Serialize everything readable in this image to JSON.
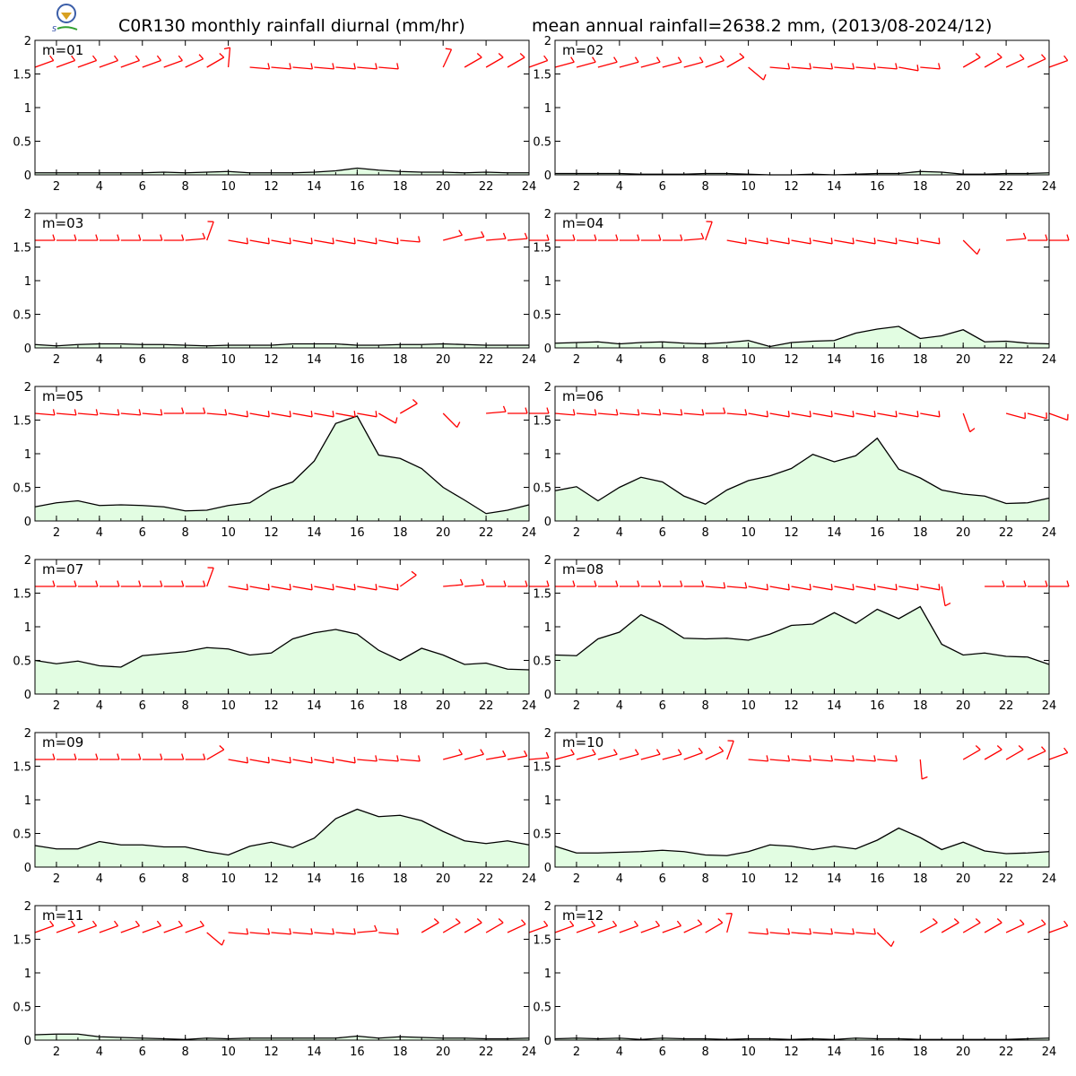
{
  "header": {
    "title_left": "C0R130 monthly rainfall diurnal (mm/hr)",
    "title_right": "mean annual rainfall=2638.2 mm, (2013/08-2024/12)"
  },
  "colors": {
    "fill": "#e2fde2",
    "line": "#000000",
    "wind": "#ff0000",
    "axis": "#000000"
  },
  "chart_data": [
    {
      "type": "area",
      "label": "m=01",
      "x": [
        1,
        2,
        3,
        4,
        5,
        6,
        7,
        8,
        9,
        10,
        11,
        12,
        13,
        14,
        15,
        16,
        17,
        18,
        19,
        20,
        21,
        22,
        23,
        24
      ],
      "ylim": [
        0,
        2
      ],
      "yticks": [
        0,
        0.5,
        1,
        1.5,
        2
      ],
      "xticks": [
        2,
        4,
        6,
        8,
        10,
        12,
        14,
        16,
        18,
        20,
        22,
        24
      ],
      "values": [
        0.03,
        0.03,
        0.03,
        0.03,
        0.03,
        0.03,
        0.04,
        0.03,
        0.04,
        0.05,
        0.03,
        0.03,
        0.03,
        0.04,
        0.06,
        0.1,
        0.07,
        0.05,
        0.04,
        0.04,
        0.03,
        0.04,
        0.03,
        0.03
      ],
      "wind_dir": [
        70,
        70,
        70,
        70,
        70,
        70,
        70,
        65,
        60,
        5,
        95,
        95,
        95,
        95,
        95,
        95,
        95,
        null,
        null,
        25,
        60,
        60,
        60,
        70
      ]
    },
    {
      "type": "area",
      "label": "m=02",
      "x": [
        1,
        2,
        3,
        4,
        5,
        6,
        7,
        8,
        9,
        10,
        11,
        12,
        13,
        14,
        15,
        16,
        17,
        18,
        19,
        20,
        21,
        22,
        23,
        24
      ],
      "ylim": [
        0,
        2
      ],
      "yticks": [
        0,
        0.5,
        1,
        1.5,
        2
      ],
      "xticks": [
        2,
        4,
        6,
        8,
        10,
        12,
        14,
        16,
        18,
        20,
        22,
        24
      ],
      "values": [
        0.02,
        0.02,
        0.02,
        0.02,
        0.01,
        0.01,
        0.01,
        0.02,
        0.02,
        0.01,
        0.0,
        0.0,
        0.01,
        0.0,
        0.01,
        0.02,
        0.02,
        0.05,
        0.04,
        0.01,
        0.01,
        0.02,
        0.02,
        0.03
      ],
      "wind_dir": [
        75,
        75,
        75,
        75,
        75,
        75,
        75,
        70,
        60,
        130,
        95,
        95,
        95,
        95,
        95,
        95,
        100,
        95,
        null,
        60,
        60,
        65,
        65,
        70
      ]
    },
    {
      "type": "area",
      "label": "m=03",
      "x": [
        1,
        2,
        3,
        4,
        5,
        6,
        7,
        8,
        9,
        10,
        11,
        12,
        13,
        14,
        15,
        16,
        17,
        18,
        19,
        20,
        21,
        22,
        23,
        24
      ],
      "ylim": [
        0,
        2
      ],
      "yticks": [
        0,
        0.5,
        1,
        1.5,
        2
      ],
      "xticks": [
        2,
        4,
        6,
        8,
        10,
        12,
        14,
        16,
        18,
        20,
        22,
        24
      ],
      "values": [
        0.05,
        0.03,
        0.05,
        0.06,
        0.06,
        0.05,
        0.05,
        0.04,
        0.03,
        0.04,
        0.04,
        0.04,
        0.06,
        0.06,
        0.06,
        0.04,
        0.04,
        0.05,
        0.05,
        0.06,
        0.05,
        0.04,
        0.04,
        0.04
      ],
      "wind_dir": [
        90,
        90,
        90,
        90,
        90,
        90,
        90,
        85,
        20,
        100,
        100,
        100,
        100,
        100,
        100,
        100,
        100,
        95,
        null,
        75,
        80,
        85,
        85,
        90
      ]
    },
    {
      "type": "area",
      "label": "m=04",
      "x": [
        1,
        2,
        3,
        4,
        5,
        6,
        7,
        8,
        9,
        10,
        11,
        12,
        13,
        14,
        15,
        16,
        17,
        18,
        19,
        20,
        21,
        22,
        23,
        24
      ],
      "ylim": [
        0,
        2
      ],
      "yticks": [
        0,
        0.5,
        1,
        1.5,
        2
      ],
      "xticks": [
        2,
        4,
        6,
        8,
        10,
        12,
        14,
        16,
        18,
        20,
        22,
        24
      ],
      "values": [
        0.07,
        0.08,
        0.09,
        0.06,
        0.08,
        0.09,
        0.07,
        0.06,
        0.08,
        0.11,
        0.02,
        0.08,
        0.1,
        0.11,
        0.22,
        0.28,
        0.32,
        0.14,
        0.18,
        0.27,
        0.09,
        0.1,
        0.07,
        0.06
      ],
      "wind_dir": [
        90,
        90,
        90,
        90,
        90,
        90,
        85,
        20,
        100,
        100,
        100,
        100,
        100,
        100,
        100,
        100,
        100,
        100,
        null,
        135,
        null,
        85,
        90,
        90
      ]
    },
    {
      "type": "area",
      "label": "m=05",
      "x": [
        1,
        2,
        3,
        4,
        5,
        6,
        7,
        8,
        9,
        10,
        11,
        12,
        13,
        14,
        15,
        16,
        17,
        18,
        19,
        20,
        21,
        22,
        23,
        24
      ],
      "ylim": [
        0,
        2
      ],
      "yticks": [
        0,
        0.5,
        1,
        1.5,
        2
      ],
      "xticks": [
        2,
        4,
        6,
        8,
        10,
        12,
        14,
        16,
        18,
        20,
        22,
        24
      ],
      "values": [
        0.21,
        0.27,
        0.3,
        0.23,
        0.24,
        0.23,
        0.21,
        0.15,
        0.16,
        0.23,
        0.27,
        0.47,
        0.58,
        0.89,
        1.45,
        1.56,
        0.98,
        0.93,
        0.78,
        0.5,
        0.31,
        0.11,
        0.16,
        0.24
      ],
      "wind_dir": [
        95,
        95,
        95,
        95,
        95,
        95,
        90,
        90,
        95,
        100,
        100,
        100,
        100,
        100,
        100,
        100,
        120,
        60,
        null,
        135,
        null,
        85,
        90,
        90
      ]
    },
    {
      "type": "area",
      "label": "m=06",
      "x": [
        1,
        2,
        3,
        4,
        5,
        6,
        7,
        8,
        9,
        10,
        11,
        12,
        13,
        14,
        15,
        16,
        17,
        18,
        19,
        20,
        21,
        22,
        23,
        24
      ],
      "ylim": [
        0,
        2
      ],
      "yticks": [
        0,
        0.5,
        1,
        1.5,
        2
      ],
      "xticks": [
        2,
        4,
        6,
        8,
        10,
        12,
        14,
        16,
        18,
        20,
        22,
        24
      ],
      "values": [
        0.45,
        0.51,
        0.3,
        0.5,
        0.65,
        0.58,
        0.37,
        0.25,
        0.46,
        0.6,
        0.67,
        0.78,
        0.99,
        0.88,
        0.97,
        1.23,
        0.77,
        0.64,
        0.46,
        0.4,
        0.37,
        0.26,
        0.27,
        0.34
      ],
      "wind_dir": [
        95,
        95,
        95,
        95,
        95,
        95,
        95,
        90,
        95,
        100,
        100,
        100,
        100,
        100,
        100,
        100,
        100,
        100,
        null,
        160,
        null,
        105,
        105,
        110
      ]
    },
    {
      "type": "area",
      "label": "m=07",
      "x": [
        1,
        2,
        3,
        4,
        5,
        6,
        7,
        8,
        9,
        10,
        11,
        12,
        13,
        14,
        15,
        16,
        17,
        18,
        19,
        20,
        21,
        22,
        23,
        24
      ],
      "ylim": [
        0,
        2
      ],
      "yticks": [
        0,
        0.5,
        1,
        1.5,
        2
      ],
      "xticks": [
        2,
        4,
        6,
        8,
        10,
        12,
        14,
        16,
        18,
        20,
        22,
        24
      ],
      "values": [
        0.5,
        0.45,
        0.49,
        0.42,
        0.4,
        0.57,
        0.6,
        0.63,
        0.69,
        0.67,
        0.58,
        0.61,
        0.82,
        0.91,
        0.96,
        0.89,
        0.65,
        0.5,
        0.68,
        0.58,
        0.44,
        0.46,
        0.37,
        0.36
      ],
      "wind_dir": [
        90,
        90,
        90,
        90,
        90,
        90,
        90,
        90,
        20,
        100,
        100,
        100,
        100,
        100,
        100,
        100,
        100,
        55,
        null,
        85,
        85,
        90,
        90,
        90
      ]
    },
    {
      "type": "area",
      "label": "m=08",
      "x": [
        1,
        2,
        3,
        4,
        5,
        6,
        7,
        8,
        9,
        10,
        11,
        12,
        13,
        14,
        15,
        16,
        17,
        18,
        19,
        20,
        21,
        22,
        23,
        24
      ],
      "ylim": [
        0,
        2
      ],
      "yticks": [
        0,
        0.5,
        1,
        1.5,
        2
      ],
      "xticks": [
        2,
        4,
        6,
        8,
        10,
        12,
        14,
        16,
        18,
        20,
        22,
        24
      ],
      "values": [
        0.58,
        0.57,
        0.82,
        0.92,
        1.18,
        1.03,
        0.83,
        0.82,
        0.83,
        0.8,
        0.89,
        1.02,
        1.04,
        1.21,
        1.05,
        1.26,
        1.12,
        1.3,
        0.74,
        0.58,
        0.61,
        0.56,
        0.55,
        0.44
      ],
      "wind_dir": [
        90,
        90,
        90,
        90,
        90,
        90,
        90,
        95,
        95,
        100,
        100,
        100,
        100,
        100,
        100,
        100,
        100,
        100,
        170,
        null,
        90,
        90,
        90,
        90
      ]
    },
    {
      "type": "area",
      "label": "m=09",
      "x": [
        1,
        2,
        3,
        4,
        5,
        6,
        7,
        8,
        9,
        10,
        11,
        12,
        13,
        14,
        15,
        16,
        17,
        18,
        19,
        20,
        21,
        22,
        23,
        24
      ],
      "ylim": [
        0,
        2
      ],
      "yticks": [
        0,
        0.5,
        1,
        1.5,
        2
      ],
      "xticks": [
        2,
        4,
        6,
        8,
        10,
        12,
        14,
        16,
        18,
        20,
        22,
        24
      ],
      "values": [
        0.32,
        0.27,
        0.27,
        0.38,
        0.33,
        0.33,
        0.3,
        0.3,
        0.23,
        0.18,
        0.31,
        0.37,
        0.29,
        0.43,
        0.72,
        0.86,
        0.75,
        0.77,
        0.69,
        0.53,
        0.39,
        0.35,
        0.39,
        0.33
      ],
      "wind_dir": [
        90,
        90,
        90,
        90,
        90,
        90,
        90,
        90,
        60,
        100,
        100,
        100,
        100,
        100,
        100,
        95,
        95,
        95,
        null,
        75,
        75,
        80,
        80,
        85
      ]
    },
    {
      "type": "area",
      "label": "m=10",
      "x": [
        1,
        2,
        3,
        4,
        5,
        6,
        7,
        8,
        9,
        10,
        11,
        12,
        13,
        14,
        15,
        16,
        17,
        18,
        19,
        20,
        21,
        22,
        23,
        24
      ],
      "ylim": [
        0,
        2
      ],
      "yticks": [
        0,
        0.5,
        1,
        1.5,
        2
      ],
      "xticks": [
        2,
        4,
        6,
        8,
        10,
        12,
        14,
        16,
        18,
        20,
        22,
        24
      ],
      "values": [
        0.31,
        0.21,
        0.21,
        0.22,
        0.23,
        0.25,
        0.23,
        0.18,
        0.17,
        0.23,
        0.33,
        0.31,
        0.26,
        0.31,
        0.27,
        0.4,
        0.58,
        0.44,
        0.26,
        0.37,
        0.24,
        0.2,
        0.21,
        0.23
      ],
      "wind_dir": [
        75,
        75,
        75,
        75,
        75,
        75,
        70,
        65,
        20,
        95,
        95,
        95,
        95,
        95,
        95,
        95,
        null,
        175,
        null,
        60,
        60,
        60,
        65,
        70
      ]
    },
    {
      "type": "area",
      "label": "m=11",
      "x": [
        1,
        2,
        3,
        4,
        5,
        6,
        7,
        8,
        9,
        10,
        11,
        12,
        13,
        14,
        15,
        16,
        17,
        18,
        19,
        20,
        21,
        22,
        23,
        24
      ],
      "ylim": [
        0,
        2
      ],
      "yticks": [
        0,
        0.5,
        1,
        1.5,
        2
      ],
      "xticks": [
        2,
        4,
        6,
        8,
        10,
        12,
        14,
        16,
        18,
        20,
        22,
        24
      ],
      "values": [
        0.08,
        0.09,
        0.09,
        0.05,
        0.04,
        0.03,
        0.02,
        0.01,
        0.03,
        0.02,
        0.03,
        0.03,
        0.03,
        0.03,
        0.03,
        0.06,
        0.03,
        0.05,
        0.04,
        0.03,
        0.03,
        0.02,
        0.02,
        0.03
      ],
      "wind_dir": [
        70,
        70,
        70,
        70,
        70,
        70,
        70,
        70,
        130,
        95,
        95,
        95,
        95,
        95,
        95,
        85,
        95,
        null,
        60,
        60,
        60,
        60,
        65,
        70
      ]
    },
    {
      "type": "area",
      "label": "m=12",
      "x": [
        1,
        2,
        3,
        4,
        5,
        6,
        7,
        8,
        9,
        10,
        11,
        12,
        13,
        14,
        15,
        16,
        17,
        18,
        19,
        20,
        21,
        22,
        23,
        24
      ],
      "ylim": [
        0,
        2
      ],
      "yticks": [
        0,
        0.5,
        1,
        1.5,
        2
      ],
      "xticks": [
        2,
        4,
        6,
        8,
        10,
        12,
        14,
        16,
        18,
        20,
        22,
        24
      ],
      "values": [
        0.02,
        0.03,
        0.02,
        0.03,
        0.01,
        0.03,
        0.02,
        0.02,
        0.01,
        0.02,
        0.02,
        0.01,
        0.02,
        0.01,
        0.03,
        0.02,
        0.02,
        0.01,
        0.01,
        0.01,
        0.01,
        0.01,
        0.02,
        0.03
      ],
      "wind_dir": [
        70,
        70,
        70,
        70,
        70,
        70,
        65,
        60,
        15,
        95,
        95,
        95,
        95,
        95,
        95,
        135,
        null,
        60,
        60,
        60,
        60,
        65,
        65,
        70
      ]
    }
  ]
}
